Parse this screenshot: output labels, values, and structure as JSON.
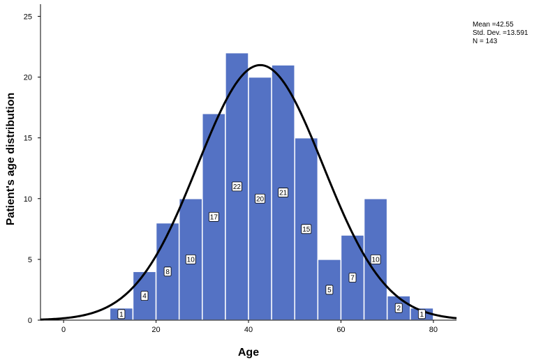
{
  "chart_data": {
    "type": "bar",
    "subtype": "histogram",
    "xlabel": "Age",
    "ylabel": "Patient's age distribution",
    "xlim": [
      -5,
      85
    ],
    "ylim": [
      0,
      26
    ],
    "xticks": [
      "0",
      "20",
      "40",
      "60",
      "80"
    ],
    "yticks": [
      "0",
      "5",
      "10",
      "15",
      "20",
      "25"
    ],
    "bin_width": 5,
    "bins": [
      {
        "start": 10,
        "end": 15,
        "value": 1
      },
      {
        "start": 15,
        "end": 20,
        "value": 4
      },
      {
        "start": 20,
        "end": 25,
        "value": 8
      },
      {
        "start": 25,
        "end": 30,
        "value": 10
      },
      {
        "start": 30,
        "end": 35,
        "value": 17
      },
      {
        "start": 35,
        "end": 40,
        "value": 22
      },
      {
        "start": 40,
        "end": 45,
        "value": 20
      },
      {
        "start": 45,
        "end": 50,
        "value": 21
      },
      {
        "start": 50,
        "end": 55,
        "value": 15
      },
      {
        "start": 55,
        "end": 60,
        "value": 5
      },
      {
        "start": 60,
        "end": 65,
        "value": 7
      },
      {
        "start": 65,
        "end": 70,
        "value": 10
      },
      {
        "start": 70,
        "end": 75,
        "value": 2
      },
      {
        "start": 75,
        "end": 80,
        "value": 1
      }
    ],
    "normal_curve": {
      "mean": 42.55,
      "std": 13.591,
      "n": 143
    },
    "grid": false,
    "legend": "top-right"
  },
  "stats": {
    "mean_text": "Mean =42.55",
    "sd_text": "Std. Dev. =13.591",
    "n_text": "N = 143"
  },
  "colors": {
    "bar_fill": "#5472C4",
    "bar_edge": "#ffffff",
    "curve": "#000000",
    "axis": "#000000"
  }
}
